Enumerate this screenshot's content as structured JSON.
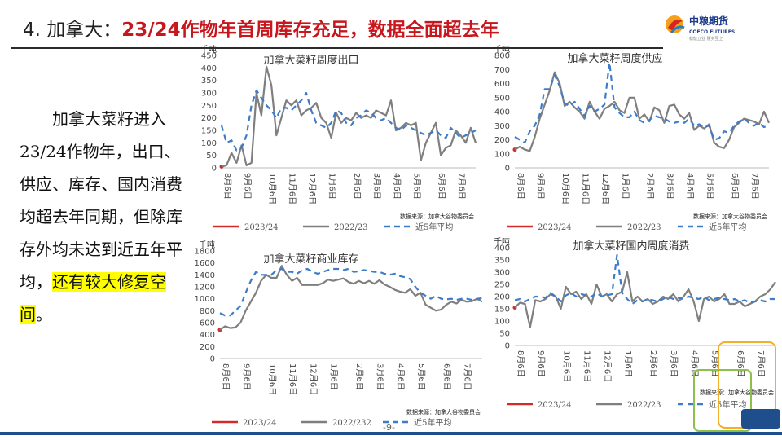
{
  "slide": {
    "title_num": "4. 加拿大：",
    "title_text": "23/24作物年首周库存充足，数据全面超去年",
    "logo_text_cn": "中粮期货",
    "logo_text_en": "COFCO FUTURES",
    "logo_slogan": "稳健立业 服务至上",
    "page_no": "-9-",
    "body_part1": "加拿大菜籽进入23/24作物年，出口、供应、库存、国内消费均超去年同期，但除库存外均未达到近五年平均，",
    "body_highlight": "还有较大修复空间",
    "body_end": "。",
    "colors": {
      "title_red": "#c8161d",
      "series_2023": "#d42a2a",
      "series_2022": "#7f7f7f",
      "series_avg": "#3d7cc9",
      "rule": "#1f4e8c"
    }
  },
  "chart_data": [
    {
      "type": "line",
      "title": "加拿大菜籽周度出口",
      "unit": "千吨",
      "ylim": [
        0,
        450
      ],
      "yticks": [
        0,
        50,
        100,
        150,
        200,
        250,
        300,
        350,
        400,
        450
      ],
      "xticks": [
        "8月6日",
        "9月6日",
        "10月6日",
        "11月6日",
        "12月6日",
        "1月6日",
        "2月6日",
        "3月6日",
        "4月6日",
        "5月6日",
        "6月6日",
        "7月6日"
      ],
      "x_count": 52,
      "source": "数据来源：加拿大谷物委员会",
      "series": [
        {
          "name": "2023/24",
          "style": "solid",
          "values": [
            5
          ]
        },
        {
          "name": "2022/23",
          "style": "solid",
          "values": [
            5,
            10,
            60,
            20,
            90,
            10,
            20,
            300,
            210,
            405,
            330,
            130,
            200,
            270,
            250,
            270,
            210,
            230,
            240,
            260,
            200,
            180,
            120,
            220,
            180,
            200,
            190,
            220,
            200,
            210,
            200,
            230,
            220,
            210,
            270,
            150,
            160,
            180,
            170,
            180,
            30,
            100,
            140,
            180,
            50,
            80,
            90,
            150,
            130,
            100,
            160,
            100
          ]
        },
        {
          "name": "近5年平均",
          "style": "dash",
          "values": [
            170,
            100,
            110,
            70,
            80,
            130,
            250,
            310,
            280,
            250,
            230,
            200,
            240,
            240,
            230,
            250,
            270,
            300,
            230,
            180,
            170,
            160,
            180,
            230,
            220,
            180,
            170,
            200,
            210,
            230,
            220,
            200,
            190,
            200,
            180,
            160,
            150,
            170,
            160,
            150,
            140,
            130,
            140,
            150,
            130,
            120,
            160,
            140,
            120,
            130,
            140,
            150
          ]
        }
      ]
    },
    {
      "type": "line",
      "title": "加拿大菜籽周度供应",
      "unit": "千吨",
      "ylim": [
        0,
        800
      ],
      "yticks": [
        0,
        100,
        200,
        300,
        400,
        500,
        600,
        700,
        800
      ],
      "xticks": [
        "8月6日",
        "9月6日",
        "10月6日",
        "11月6日",
        "12月6日",
        "1月6日",
        "2月6日",
        "3月6日",
        "4月6日",
        "5月6日",
        "6月6日",
        "7月6日"
      ],
      "x_count": 52,
      "source": "数据来源：加拿大谷物委员会",
      "series": [
        {
          "name": "2023/24",
          "style": "solid",
          "values": [
            130
          ]
        },
        {
          "name": "2022/23",
          "style": "solid",
          "values": [
            130,
            150,
            130,
            120,
            220,
            350,
            450,
            550,
            680,
            600,
            440,
            470,
            430,
            400,
            350,
            470,
            400,
            350,
            420,
            440,
            470,
            410,
            390,
            500,
            500,
            350,
            380,
            330,
            430,
            410,
            320,
            440,
            450,
            380,
            350,
            390,
            270,
            300,
            280,
            310,
            180,
            150,
            140,
            200,
            290,
            320,
            350,
            340,
            330,
            310,
            400,
            320
          ]
        },
        {
          "name": "近5年平均",
          "style": "dash",
          "values": [
            220,
            200,
            180,
            260,
            300,
            380,
            560,
            560,
            660,
            580,
            460,
            440,
            470,
            420,
            370,
            440,
            400,
            420,
            450,
            750,
            430,
            390,
            360,
            360,
            400,
            340,
            320,
            340,
            370,
            360,
            350,
            330,
            320,
            330,
            320,
            350,
            300,
            310,
            290,
            300,
            200,
            210,
            260,
            250,
            300,
            330,
            350,
            320,
            300,
            320,
            290,
            300
          ]
        }
      ]
    },
    {
      "type": "line",
      "title": "加拿大菜籽商业库存",
      "unit": "千吨",
      "ylim": [
        0,
        1800
      ],
      "yticks": [
        0,
        200,
        400,
        600,
        800,
        1000,
        1200,
        1400,
        1600,
        1800
      ],
      "xticks": [
        "8月6日",
        "9月6日",
        "10月6日",
        "11月6日",
        "12月6日",
        "1月6日",
        "2月6日",
        "3月6日",
        "4月6日",
        "5月6日",
        "6月6日",
        "7月6日"
      ],
      "x_count": 52,
      "source": "数据来源：加拿大谷物委员会",
      "series": [
        {
          "name": "2023/24",
          "style": "solid",
          "values": [
            480
          ]
        },
        {
          "name": "2022/232",
          "style": "solid",
          "values": [
            480,
            540,
            510,
            520,
            600,
            800,
            950,
            1100,
            1300,
            1400,
            1350,
            1350,
            1550,
            1400,
            1300,
            1350,
            1230,
            1230,
            1230,
            1230,
            1260,
            1320,
            1300,
            1320,
            1340,
            1280,
            1250,
            1300,
            1260,
            1300,
            1250,
            1310,
            1240,
            1200,
            1150,
            1120,
            1100,
            1160,
            1050,
            1100,
            900,
            850,
            800,
            820,
            900,
            950,
            920,
            980,
            950,
            960,
            1000,
            950
          ]
        },
        {
          "name": "近5年平均",
          "style": "dash",
          "values": [
            760,
            720,
            720,
            800,
            880,
            1100,
            1300,
            1450,
            1400,
            1400,
            1400,
            1480,
            1500,
            1450,
            1450,
            1420,
            1480,
            1500,
            1450,
            1420,
            1450,
            1480,
            1500,
            1500,
            1480,
            1500,
            1450,
            1460,
            1480,
            1470,
            1450,
            1450,
            1420,
            1400,
            1420,
            1380,
            1360,
            1330,
            1200,
            1100,
            1050,
            1000,
            1050,
            1000,
            990,
            1000,
            980,
            1000,
            1000,
            980,
            1000,
            1010
          ]
        }
      ]
    },
    {
      "type": "line",
      "title": "加拿大菜籽国内周度消费",
      "unit": "千吨",
      "ylim": [
        0,
        400
      ],
      "yticks": [
        0,
        50,
        100,
        150,
        200,
        250,
        300,
        350,
        400
      ],
      "xticks": [
        "8月6日",
        "9月6日",
        "10月6日",
        "11月6日",
        "12月6日",
        "1月6日",
        "2月6日",
        "3月6日",
        "4月6日",
        "5月6日",
        "6月6日",
        "7月6日"
      ],
      "x_count": 52,
      "source": "数据来源：加拿大谷物委员会",
      "series": [
        {
          "name": "2023/24",
          "style": "solid",
          "values": [
            155
          ]
        },
        {
          "name": "2022/23",
          "style": "solid",
          "values": [
            155,
            175,
            170,
            75,
            185,
            180,
            190,
            210,
            200,
            150,
            240,
            210,
            220,
            190,
            210,
            170,
            250,
            200,
            210,
            180,
            210,
            220,
            300,
            180,
            200,
            180,
            190,
            170,
            180,
            200,
            190,
            210,
            180,
            200,
            230,
            180,
            100,
            190,
            200,
            180,
            190,
            210,
            170,
            170,
            180,
            160,
            170,
            180,
            200,
            210,
            230,
            260
          ]
        },
        {
          "name": "近5年平均",
          "style": "dash",
          "values": [
            185,
            190,
            180,
            190,
            200,
            200,
            195,
            215,
            200,
            180,
            205,
            215,
            200,
            210,
            205,
            200,
            215,
            200,
            205,
            210,
            370,
            215,
            190,
            170,
            185,
            180,
            190,
            185,
            180,
            190,
            200,
            190,
            195,
            190,
            200,
            195,
            190,
            200,
            185,
            190,
            195,
            190,
            185,
            190,
            180,
            185,
            175,
            180,
            185,
            180,
            190,
            190
          ]
        }
      ]
    }
  ]
}
